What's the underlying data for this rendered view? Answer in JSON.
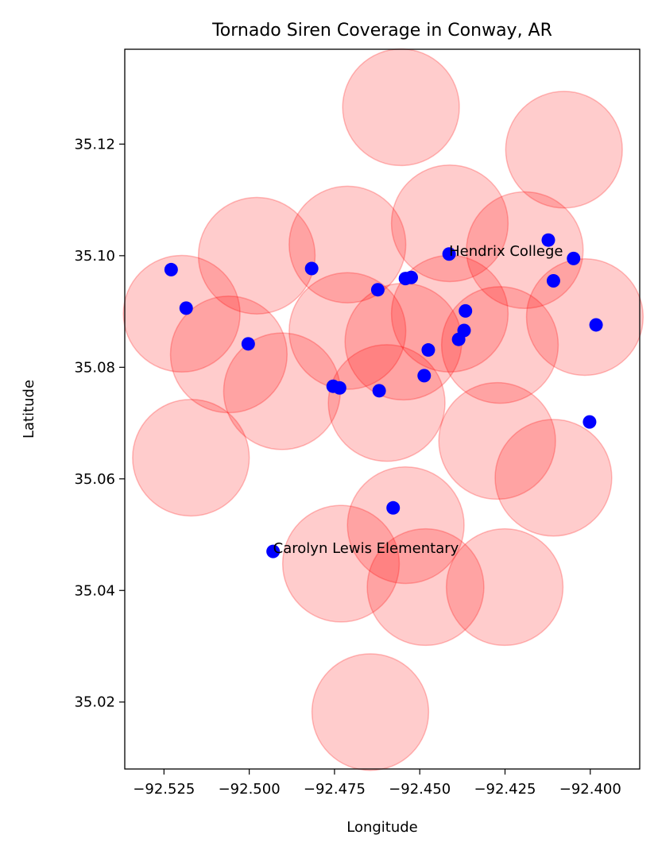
{
  "chart_data": {
    "type": "scatter",
    "title": "Tornado Siren Coverage in Conway, AR",
    "xlabel": "Longitude",
    "ylabel": "Latitude",
    "xlim": [
      -92.5365,
      -92.3855
    ],
    "ylim": [
      35.008,
      35.137
    ],
    "x_ticks": [
      -92.525,
      -92.5,
      -92.475,
      -92.45,
      -92.425,
      -92.4
    ],
    "x_tick_labels": [
      "−92.525",
      "−92.500",
      "−92.475",
      "−92.450",
      "−92.425",
      "−92.400"
    ],
    "y_ticks": [
      35.02,
      35.04,
      35.06,
      35.08,
      35.1,
      35.12
    ],
    "y_tick_labels": [
      "35.02",
      "35.04",
      "35.06",
      "35.08",
      "35.10",
      "35.12"
    ],
    "grid": false,
    "coverage_radius_deg": 0.0171,
    "coverage_color": "#ff0000",
    "coverage_alpha": 0.2,
    "point_color": "#0000ff",
    "coverage_areas": [
      {
        "lon": -92.4555,
        "lat": 35.1266
      },
      {
        "lon": -92.4077,
        "lat": 35.119
      },
      {
        "lon": -92.4412,
        "lat": 35.1058
      },
      {
        "lon": -92.4192,
        "lat": 35.101
      },
      {
        "lon": -92.4978,
        "lat": 35.1
      },
      {
        "lon": -92.4712,
        "lat": 35.102
      },
      {
        "lon": -92.5198,
        "lat": 35.0896
      },
      {
        "lon": -92.4016,
        "lat": 35.089
      },
      {
        "lon": -92.4712,
        "lat": 35.0865
      },
      {
        "lon": -92.4548,
        "lat": 35.0846
      },
      {
        "lon": -92.4412,
        "lat": 35.0896
      },
      {
        "lon": -92.4265,
        "lat": 35.084
      },
      {
        "lon": -92.506,
        "lat": 35.0823
      },
      {
        "lon": -92.4904,
        "lat": 35.0757
      },
      {
        "lon": -92.4597,
        "lat": 35.0736
      },
      {
        "lon": -92.4273,
        "lat": 35.0668
      },
      {
        "lon": -92.5171,
        "lat": 35.0638
      },
      {
        "lon": -92.4108,
        "lat": 35.0602
      },
      {
        "lon": -92.4541,
        "lat": 35.0517
      },
      {
        "lon": -92.4731,
        "lat": 35.0448
      },
      {
        "lon": -92.4483,
        "lat": 35.0406
      },
      {
        "lon": -92.4251,
        "lat": 35.0406
      },
      {
        "lon": -92.4645,
        "lat": 35.0182
      }
    ],
    "points": [
      {
        "lon": -92.5229,
        "lat": 35.0975
      },
      {
        "lon": -92.5185,
        "lat": 35.0906
      },
      {
        "lon": -92.5003,
        "lat": 35.0842
      },
      {
        "lon": -92.4817,
        "lat": 35.0977
      },
      {
        "lon": -92.4754,
        "lat": 35.0766
      },
      {
        "lon": -92.4735,
        "lat": 35.0763
      },
      {
        "lon": -92.4623,
        "lat": 35.0939
      },
      {
        "lon": -92.4619,
        "lat": 35.0758
      },
      {
        "lon": -92.4542,
        "lat": 35.0959
      },
      {
        "lon": -92.4525,
        "lat": 35.0961
      },
      {
        "lon": -92.4578,
        "lat": 35.0548
      },
      {
        "lon": -92.4487,
        "lat": 35.0785
      },
      {
        "lon": -92.4475,
        "lat": 35.0831
      },
      {
        "lon": -92.4414,
        "lat": 35.1003
      },
      {
        "lon": -92.4386,
        "lat": 35.085
      },
      {
        "lon": -92.437,
        "lat": 35.0866
      },
      {
        "lon": -92.4366,
        "lat": 35.0901
      },
      {
        "lon": -92.4123,
        "lat": 35.1028
      },
      {
        "lon": -92.4108,
        "lat": 35.0955
      },
      {
        "lon": -92.4049,
        "lat": 35.0995
      },
      {
        "lon": -92.3983,
        "lat": 35.0876
      },
      {
        "lon": -92.4002,
        "lat": 35.0702
      },
      {
        "lon": -92.493,
        "lat": 35.047
      }
    ],
    "annotations": [
      {
        "text": "Hendrix College",
        "lon": -92.4414,
        "lat": 35.1003
      },
      {
        "text": "Carolyn Lewis Elementary",
        "lon": -92.493,
        "lat": 35.047
      }
    ]
  }
}
